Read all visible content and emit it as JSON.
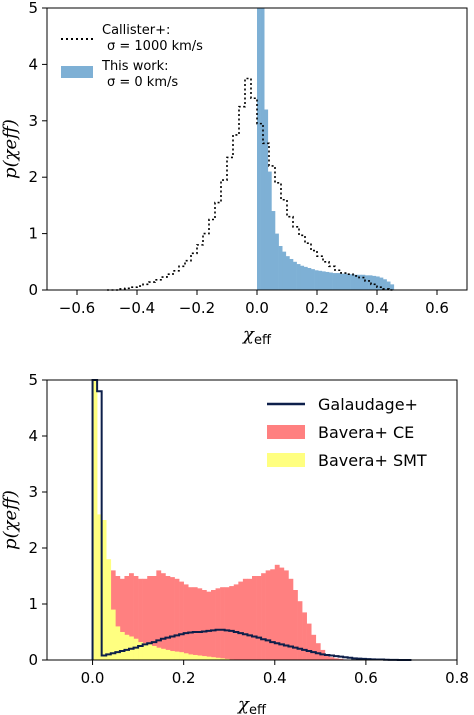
{
  "chart_data": [
    {
      "type": "area",
      "xlim": [
        -0.7,
        0.7
      ],
      "ylim": [
        0,
        5
      ],
      "xticks": [
        "-0.6",
        "-0.4",
        "-0.2",
        "0.0",
        "0.2",
        "0.4",
        "0.6"
      ],
      "yticks": [
        "0",
        "1",
        "2",
        "3",
        "4",
        "5"
      ],
      "xlabel": "χ",
      "xlabel_sub": "eff",
      "ylabel": "p(χeff)",
      "legend_position": "top-left",
      "series": [
        {
          "name": "Callister+: σ = 1000 km/s",
          "legend_line1": "Callister+:",
          "legend_line2": "σ = 1000 km/s",
          "style": "dotted-step",
          "color": "#000000",
          "bin_width": 0.02,
          "x_start": -0.5,
          "values": [
            0.0,
            0.0,
            0.02,
            0.03,
            0.05,
            0.07,
            0.1,
            0.14,
            0.18,
            0.23,
            0.28,
            0.34,
            0.42,
            0.52,
            0.65,
            0.8,
            1.0,
            1.25,
            1.55,
            1.95,
            2.35,
            2.75,
            3.25,
            3.75,
            3.4,
            2.95,
            2.6,
            2.2,
            1.9,
            1.6,
            1.3,
            1.12,
            0.97,
            0.83,
            0.7,
            0.6,
            0.5,
            0.42,
            0.35,
            0.3,
            0.28,
            0.25,
            0.22,
            0.16,
            0.1,
            0.05,
            0.02,
            0.0
          ]
        },
        {
          "name": "This work: σ = 0 km/s",
          "legend_line1": "This work:",
          "legend_line2": "σ = 0 km/s",
          "style": "filled-bars",
          "color": "#7eb0d5",
          "bin_width": 0.012,
          "x_start": 0.0,
          "values": [
            5.0,
            5.0,
            3.2,
            2.1,
            1.4,
            1.0,
            0.78,
            0.68,
            0.6,
            0.55,
            0.5,
            0.46,
            0.43,
            0.41,
            0.39,
            0.37,
            0.35,
            0.34,
            0.33,
            0.32,
            0.31,
            0.3,
            0.3,
            0.29,
            0.29,
            0.28,
            0.28,
            0.27,
            0.27,
            0.27,
            0.26,
            0.26,
            0.25,
            0.24,
            0.22,
            0.19,
            0.15,
            0.1
          ]
        }
      ]
    },
    {
      "type": "area",
      "xlim": [
        -0.1,
        0.8
      ],
      "ylim": [
        0,
        5
      ],
      "xticks": [
        "0.0",
        "0.2",
        "0.4",
        "0.6",
        "0.8"
      ],
      "yticks": [
        "0",
        "1",
        "2",
        "3",
        "4",
        "5"
      ],
      "xlabel": "χ",
      "xlabel_sub": "eff",
      "ylabel": "p(χeff)",
      "legend_position": "top-right",
      "series": [
        {
          "name": "Galaudage+",
          "style": "step-line",
          "color": "#0d1f4a",
          "bin_width": 0.01,
          "x_start": 0.0,
          "values": [
            5.0,
            4.8,
            0.08,
            0.1,
            0.12,
            0.14,
            0.16,
            0.18,
            0.2,
            0.22,
            0.25,
            0.28,
            0.3,
            0.32,
            0.35,
            0.38,
            0.4,
            0.42,
            0.44,
            0.46,
            0.48,
            0.49,
            0.5,
            0.5,
            0.51,
            0.52,
            0.53,
            0.54,
            0.54,
            0.53,
            0.52,
            0.5,
            0.48,
            0.46,
            0.44,
            0.42,
            0.4,
            0.37,
            0.35,
            0.32,
            0.3,
            0.28,
            0.26,
            0.24,
            0.22,
            0.2,
            0.18,
            0.16,
            0.14,
            0.12,
            0.1,
            0.09,
            0.08,
            0.07,
            0.06,
            0.05,
            0.04,
            0.03,
            0.025,
            0.02,
            0.015,
            0.012,
            0.01,
            0.008,
            0.005,
            0.003,
            0.002,
            0.001,
            0.0,
            0.0
          ]
        },
        {
          "name": "Bavera+ CE",
          "style": "filled-bars",
          "color": "#ff8080",
          "bin_width": 0.01,
          "x_start": 0.0,
          "values": [
            0.0,
            0.0,
            0.05,
            1.5,
            1.6,
            1.5,
            1.45,
            1.5,
            1.55,
            1.5,
            1.45,
            1.45,
            1.5,
            1.5,
            1.6,
            1.55,
            1.5,
            1.48,
            1.45,
            1.4,
            1.35,
            1.3,
            1.3,
            1.28,
            1.25,
            1.22,
            1.25,
            1.28,
            1.3,
            1.3,
            1.32,
            1.35,
            1.4,
            1.45,
            1.45,
            1.5,
            1.5,
            1.55,
            1.6,
            1.62,
            1.7,
            1.65,
            1.6,
            1.45,
            1.25,
            1.05,
            0.85,
            0.65,
            0.45,
            0.3,
            0.18,
            0.1,
            0.05,
            0.03,
            0.02,
            0.01,
            0.0,
            0.0,
            0.0,
            0.0
          ]
        },
        {
          "name": "Bavera+ SMT",
          "style": "filled-bars",
          "color": "#ffff80",
          "bin_width": 0.01,
          "x_start": 0.0,
          "values": [
            5.0,
            2.6,
            2.5,
            1.8,
            0.9,
            0.6,
            0.5,
            0.45,
            0.42,
            0.38,
            0.32,
            0.3,
            0.28,
            0.25,
            0.22,
            0.2,
            0.18,
            0.16,
            0.15,
            0.14,
            0.12,
            0.1,
            0.09,
            0.08,
            0.07,
            0.06,
            0.05,
            0.04,
            0.03,
            0.02,
            0.01,
            0.0
          ]
        }
      ]
    }
  ]
}
